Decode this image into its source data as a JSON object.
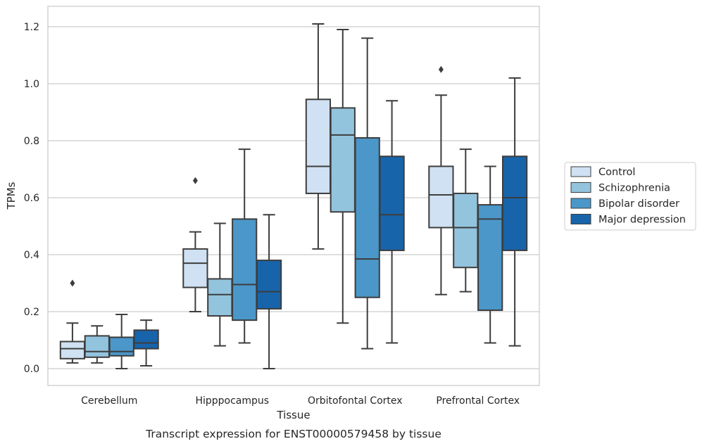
{
  "chart_data": {
    "type": "box",
    "caption": "Transcript expression for ENST00000579458 by tissue",
    "xlabel": "Tissue",
    "ylabel": "TPMs",
    "ylim": [
      -0.06,
      1.27
    ],
    "yticks": [
      0.0,
      0.2,
      0.4,
      0.6,
      0.8,
      1.0,
      1.2
    ],
    "ytick_labels": [
      "0.0",
      "0.2",
      "0.4",
      "0.6",
      "0.8",
      "1.0",
      "1.2"
    ],
    "grid": "horizontal",
    "legend_position": "right",
    "categories": [
      "Cerebellum",
      "Hipppocampus",
      "Orbitofontal Cortex",
      "Prefrontal Cortex"
    ],
    "series": [
      {
        "name": "Control",
        "color": "#cfe1f2",
        "boxes": [
          {
            "whislo": 0.02,
            "q1": 0.035,
            "med": 0.07,
            "q3": 0.095,
            "whishi": 0.16,
            "fliers": [
              0.3
            ]
          },
          {
            "whislo": 0.2,
            "q1": 0.285,
            "med": 0.37,
            "q3": 0.42,
            "whishi": 0.48,
            "fliers": [
              0.66
            ]
          },
          {
            "whislo": 0.42,
            "q1": 0.615,
            "med": 0.71,
            "q3": 0.945,
            "whishi": 1.21,
            "fliers": []
          },
          {
            "whislo": 0.26,
            "q1": 0.495,
            "med": 0.61,
            "q3": 0.71,
            "whishi": 0.96,
            "fliers": [
              1.05
            ]
          }
        ]
      },
      {
        "name": "Schizophrenia",
        "color": "#93c4de",
        "boxes": [
          {
            "whislo": 0.02,
            "q1": 0.04,
            "med": 0.06,
            "q3": 0.115,
            "whishi": 0.15,
            "fliers": []
          },
          {
            "whislo": 0.08,
            "q1": 0.185,
            "med": 0.26,
            "q3": 0.315,
            "whishi": 0.51,
            "fliers": []
          },
          {
            "whislo": 0.16,
            "q1": 0.55,
            "med": 0.82,
            "q3": 0.915,
            "whishi": 1.19,
            "fliers": []
          },
          {
            "whislo": 0.27,
            "q1": 0.355,
            "med": 0.495,
            "q3": 0.615,
            "whishi": 0.77,
            "fliers": []
          }
        ]
      },
      {
        "name": "Bipolar disorder",
        "color": "#4b97c9",
        "boxes": [
          {
            "whislo": 0.0,
            "q1": 0.045,
            "med": 0.06,
            "q3": 0.11,
            "whishi": 0.19,
            "fliers": []
          },
          {
            "whislo": 0.09,
            "q1": 0.17,
            "med": 0.295,
            "q3": 0.525,
            "whishi": 0.77,
            "fliers": []
          },
          {
            "whislo": 0.07,
            "q1": 0.25,
            "med": 0.385,
            "q3": 0.81,
            "whishi": 1.16,
            "fliers": []
          },
          {
            "whislo": 0.09,
            "q1": 0.205,
            "med": 0.525,
            "q3": 0.575,
            "whishi": 0.71,
            "fliers": []
          }
        ]
      },
      {
        "name": "Major depression",
        "color": "#1764ab",
        "boxes": [
          {
            "whislo": 0.01,
            "q1": 0.07,
            "med": 0.09,
            "q3": 0.135,
            "whishi": 0.17,
            "fliers": []
          },
          {
            "whislo": 0.0,
            "q1": 0.21,
            "med": 0.27,
            "q3": 0.38,
            "whishi": 0.54,
            "fliers": []
          },
          {
            "whislo": 0.09,
            "q1": 0.415,
            "med": 0.54,
            "q3": 0.745,
            "whishi": 0.94,
            "fliers": []
          },
          {
            "whislo": 0.08,
            "q1": 0.415,
            "med": 0.6,
            "q3": 0.745,
            "whishi": 1.02,
            "fliers": []
          }
        ]
      }
    ]
  }
}
